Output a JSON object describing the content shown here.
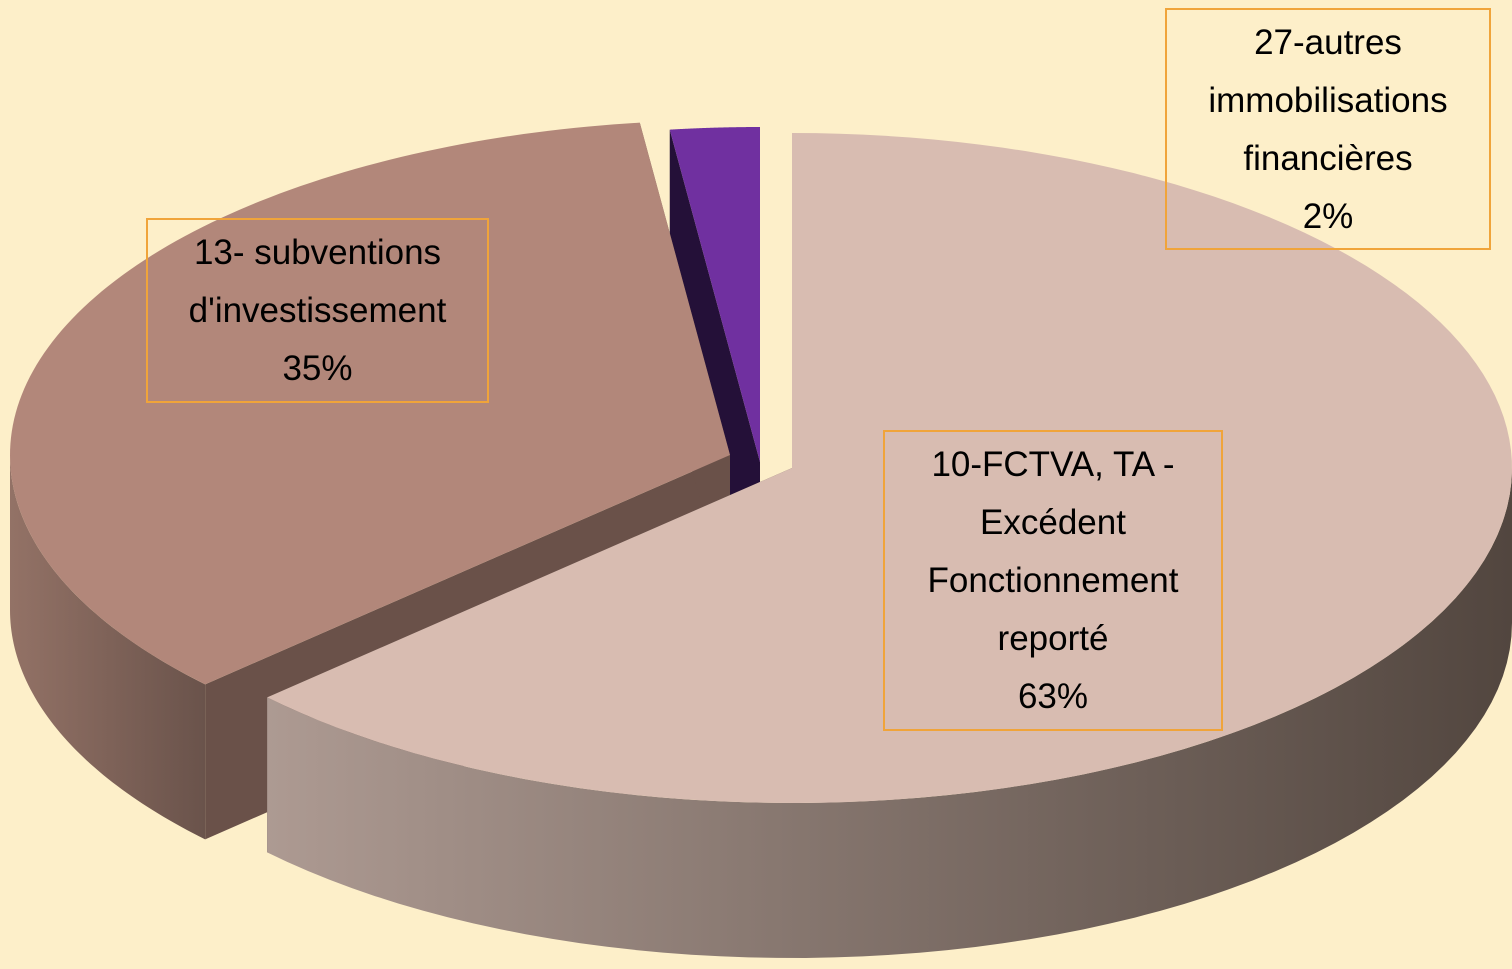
{
  "chart_data": {
    "type": "pie",
    "categories": [
      "10-FCTVA, TA - Excédent Fonctionnement reporté",
      "13- subventions d'investissement",
      "27-autres immobilisations financières"
    ],
    "values": [
      63,
      35,
      2
    ],
    "value_labels": [
      "63%",
      "35%",
      "2%"
    ],
    "colors": [
      "#d8bcb1",
      "#b2877a",
      "#7030a0"
    ]
  }
}
